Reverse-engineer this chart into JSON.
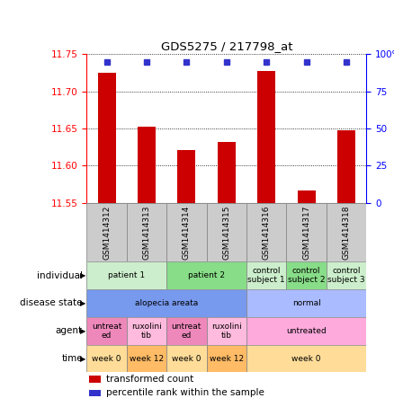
{
  "title": "GDS5275 / 217798_at",
  "samples": [
    "GSM1414312",
    "GSM1414313",
    "GSM1414314",
    "GSM1414315",
    "GSM1414316",
    "GSM1414317",
    "GSM1414318"
  ],
  "bar_values": [
    11.725,
    11.652,
    11.621,
    11.632,
    11.727,
    11.566,
    11.648
  ],
  "ylim_left": [
    11.55,
    11.75
  ],
  "yticks_left": [
    11.55,
    11.6,
    11.65,
    11.7,
    11.75
  ],
  "yticks_right_vals": [
    0,
    25,
    50,
    75,
    100
  ],
  "yticks_right_labels": [
    "0",
    "25",
    "50",
    "75",
    "100%"
  ],
  "bar_color": "#CC0000",
  "dot_color": "#3333CC",
  "bar_bottom": 11.55,
  "sample_bg_color": "#CCCCCC",
  "annotation_rows": [
    {
      "label": "individual",
      "cells": [
        {
          "text": "patient 1",
          "span": 2,
          "color": "#CCEECC"
        },
        {
          "text": "patient 2",
          "span": 2,
          "color": "#88DD88"
        },
        {
          "text": "control\nsubject 1",
          "span": 1,
          "color": "#CCEECC"
        },
        {
          "text": "control\nsubject 2",
          "span": 1,
          "color": "#88DD88"
        },
        {
          "text": "control\nsubject 3",
          "span": 1,
          "color": "#CCEECC"
        }
      ]
    },
    {
      "label": "disease state",
      "cells": [
        {
          "text": "alopecia areata",
          "span": 4,
          "color": "#7799EE"
        },
        {
          "text": "normal",
          "span": 3,
          "color": "#AABBFF"
        }
      ]
    },
    {
      "label": "agent",
      "cells": [
        {
          "text": "untreat\ned",
          "span": 1,
          "color": "#EE88BB"
        },
        {
          "text": "ruxolini\ntib",
          "span": 1,
          "color": "#FFBBDD"
        },
        {
          "text": "untreat\ned",
          "span": 1,
          "color": "#EE88BB"
        },
        {
          "text": "ruxolini\ntib",
          "span": 1,
          "color": "#FFBBDD"
        },
        {
          "text": "untreated",
          "span": 3,
          "color": "#FFAADD"
        }
      ]
    },
    {
      "label": "time",
      "cells": [
        {
          "text": "week 0",
          "span": 1,
          "color": "#FFDD99"
        },
        {
          "text": "week 12",
          "span": 1,
          "color": "#FFBB66"
        },
        {
          "text": "week 0",
          "span": 1,
          "color": "#FFDD99"
        },
        {
          "text": "week 12",
          "span": 1,
          "color": "#FFBB66"
        },
        {
          "text": "week 0",
          "span": 3,
          "color": "#FFDD99"
        }
      ]
    }
  ],
  "legend_items": [
    {
      "color": "#CC0000",
      "label": "transformed count"
    },
    {
      "color": "#3333CC",
      "label": "percentile rank within the sample"
    }
  ]
}
